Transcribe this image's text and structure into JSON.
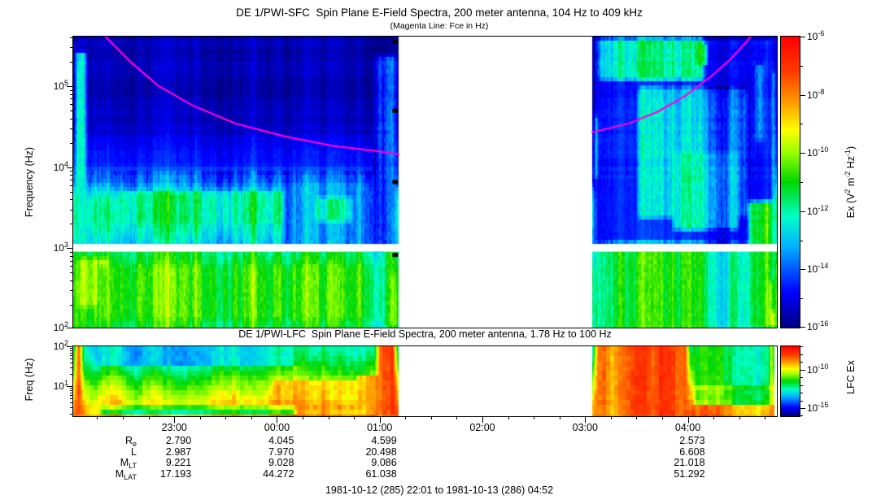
{
  "header": {
    "title": "DE 1/PWI-SFC  Spin Plane E-Field Spectra, 200 meter antenna, 104 Hz to 409 kHz",
    "subtitle": "(Magenta Line: Fce in Hz)"
  },
  "sfc_panel": {
    "ylabel": "Frequency (Hz)",
    "ex_label": {
      "pre": "Ex (V",
      "sup1": "2",
      "mid1": " m",
      "sup2": "-2",
      "mid2": " Hz",
      "sup3": "-1",
      "post": ")"
    }
  },
  "lfc_panel": {
    "title": "DE 1/PWI-LFC  Spin Plane E-Field Spectra, 200 meter antenna, 1.78 Hz to 100 Hz",
    "ylabel": "Freq (Hz)",
    "colorbar_label": "LFC Ex"
  },
  "xaxis": {
    "hour_labels": [
      "23:00",
      "00:00",
      "01:00",
      "02:00",
      "03:00",
      "04:00"
    ],
    "hour_fracs": [
      0.1436,
      0.2895,
      0.4355,
      0.5815,
      0.7275,
      0.8735
    ],
    "minor_tick_minutes": 15,
    "first_minor_offset_min": 14,
    "total_minutes": 411
  },
  "ephemeris": {
    "rows": [
      {
        "label": "R",
        "sub": "e",
        "values": [
          "2.790",
          "4.045",
          "4.599",
          "",
          "",
          "2.573"
        ]
      },
      {
        "label": "L",
        "sub": "",
        "values": [
          "2.987",
          "7.970",
          "20.498",
          "",
          "",
          "6.608"
        ]
      },
      {
        "label": "M",
        "sub": "LT",
        "values": [
          "9.221",
          "9.028",
          "9.086",
          "",
          "",
          "21.018"
        ]
      },
      {
        "label": "M",
        "sub": "LAT",
        "values": [
          "17.193",
          "44.272",
          "61.038",
          "",
          "",
          "51.292"
        ]
      }
    ]
  },
  "footer": "1981-10-12 (285) 22:01 to 1981-10-13 (286) 04:52",
  "chart_data": [
    {
      "type": "heatmap",
      "name": "sfc-spectrogram",
      "title": "DE 1/PWI-SFC Spin Plane E-Field Spectra, 200 meter antenna, 104 Hz to 409 kHz",
      "x_start": "1981-10-12 22:01",
      "x_end": "1981-10-13 04:52",
      "y_unit": "Hz",
      "y_log10_range": [
        2.017,
        5.612
      ],
      "y_tick_exps": [
        5,
        4,
        3,
        2
      ],
      "z_unit": "V^2 m^-2 Hz^-1",
      "z_log10_range": [
        -16,
        -6
      ],
      "colorbar_labeled_exps": [
        -6,
        -8,
        -10,
        -12,
        -14,
        -16
      ],
      "data_start_frac": 0.0,
      "data_end_frac": 1.0,
      "data_gap_frac": [
        0.46243,
        0.73757
      ],
      "data_gap_time": [
        "01:11",
        "03:04"
      ],
      "band_separator_log10f_range": [
        2.955,
        3.05
      ],
      "fce_color": "#ff00dd",
      "fce_line_left": [
        [
          0.035,
          5.75
        ],
        [
          0.046,
          5.61
        ],
        [
          0.08,
          5.31
        ],
        [
          0.12,
          5.01
        ],
        [
          0.17,
          4.76
        ],
        [
          0.23,
          4.54
        ],
        [
          0.3,
          4.38
        ],
        [
          0.37,
          4.26
        ],
        [
          0.43,
          4.2
        ],
        [
          0.4624,
          4.16
        ]
      ],
      "fce_line_right": [
        [
          0.7376,
          4.43
        ],
        [
          0.79,
          4.54
        ],
        [
          0.83,
          4.68
        ],
        [
          0.87,
          4.88
        ],
        [
          0.905,
          5.11
        ],
        [
          0.935,
          5.34
        ],
        [
          0.958,
          5.56
        ],
        [
          0.966,
          5.65
        ]
      ],
      "black_marks": [
        [
          0.4535,
          5.55
        ],
        [
          0.4535,
          4.7
        ],
        [
          0.4535,
          3.82
        ],
        [
          0.4535,
          2.92
        ]
      ],
      "base_profile": [
        [
          2.0,
          -11.0
        ],
        [
          2.35,
          -10.7
        ],
        [
          2.75,
          -10.8
        ],
        [
          2.95,
          -11.3
        ],
        [
          3.05,
          -12.6
        ],
        [
          3.35,
          -11.8
        ],
        [
          3.6,
          -12.0
        ],
        [
          3.85,
          -13.9
        ],
        [
          4.15,
          -14.7
        ],
        [
          4.5,
          -15.35
        ],
        [
          5.0,
          -15.45
        ],
        [
          5.612,
          -15.45
        ]
      ],
      "patches": [
        [
          0.0,
          0.022,
          3.0,
          5.45,
          -12.6
        ],
        [
          0.004,
          0.012,
          2.6,
          5.2,
          -11.8
        ],
        [
          0.004,
          0.055,
          2.25,
          2.9,
          -9.9
        ],
        [
          0.03,
          0.455,
          2.1,
          2.8,
          -10.55
        ],
        [
          0.06,
          0.44,
          3.28,
          3.72,
          -11.7
        ],
        [
          0.295,
          0.455,
          2.95,
          3.8,
          -13.3
        ],
        [
          0.34,
          0.4,
          3.3,
          3.65,
          -12.0
        ],
        [
          0.425,
          0.462,
          3.0,
          5.4,
          -13.0
        ],
        [
          0.437,
          0.462,
          2.0,
          3.0,
          -10.0
        ],
        [
          0.448,
          0.462,
          2.0,
          2.7,
          -9.2
        ],
        [
          0.738,
          1.0,
          3.05,
          5.612,
          -14.5
        ],
        [
          0.738,
          1.0,
          2.0,
          3.0,
          -11.2
        ],
        [
          0.742,
          0.9,
          5.05,
          5.612,
          -12.3
        ],
        [
          0.7376,
          0.749,
          3.85,
          4.65,
          -11.6
        ],
        [
          0.7376,
          0.749,
          2.55,
          3.0,
          -11.6
        ],
        [
          0.8,
          0.965,
          3.35,
          5.0,
          -13.1
        ],
        [
          0.85,
          0.95,
          3.2,
          4.2,
          -12.4
        ],
        [
          0.88,
          0.905,
          5.25,
          5.55,
          -11.3
        ],
        [
          0.965,
          0.985,
          4.3,
          5.3,
          -12.8
        ],
        [
          0.955,
          1.0,
          2.0,
          3.6,
          -10.5
        ],
        [
          0.985,
          1.0,
          2.0,
          2.6,
          -9.0
        ],
        [
          0.99,
          1.0,
          2.2,
          5.2,
          -12.3
        ]
      ],
      "noise": {
        "seed": 11,
        "col_amp": 2.0,
        "speckle": 0.55,
        "row_stripe": 0.32,
        "row_stripe_above": 3.85,
        "xq": 2,
        "yq": 5
      }
    },
    {
      "type": "heatmap",
      "name": "lfc-spectrogram",
      "title": "DE 1/PWI-LFC Spin Plane E-Field Spectra, 200 meter antenna, 1.78 Hz to 100 Hz",
      "x_start": "1981-10-12 22:01",
      "x_end": "1981-10-13 04:52",
      "y_unit": "Hz",
      "y_log10_range": [
        0.25,
        2.0
      ],
      "y_tick_exps": [
        2,
        1
      ],
      "z_unit": "V^2 m^-2 Hz^-1",
      "z_log10_range": [
        -16,
        -7
      ],
      "colorbar_labeled_exps": [
        -10,
        -15
      ],
      "data_start_frac": 0.0,
      "data_end_frac": 0.9965,
      "data_gap_frac": [
        0.46243,
        0.73757
      ],
      "data_gap_time": [
        "01:11",
        "03:04"
      ],
      "base_profile": [
        [
          0.25,
          -8.3
        ],
        [
          0.55,
          -8.9
        ],
        [
          0.85,
          -9.6
        ],
        [
          1.15,
          -10.3
        ],
        [
          1.5,
          -11.3
        ],
        [
          1.8,
          -11.9
        ],
        [
          2.0,
          -12.2
        ]
      ],
      "patches": [
        [
          0.0,
          0.016,
          0.25,
          2.0,
          -7.6
        ],
        [
          0.02,
          0.43,
          0.25,
          0.42,
          -9.0
        ],
        [
          0.035,
          0.32,
          0.25,
          0.5,
          -11.2
        ],
        [
          0.03,
          0.32,
          1.5,
          2.0,
          -12.4
        ],
        [
          0.28,
          0.462,
          0.62,
          1.2,
          -9.3
        ],
        [
          0.4,
          0.462,
          0.4,
          1.3,
          -8.9
        ],
        [
          0.428,
          0.462,
          0.25,
          2.0,
          -7.9
        ],
        [
          0.738,
          0.878,
          0.25,
          2.0,
          -8.3
        ],
        [
          0.878,
          1.0,
          1.0,
          2.0,
          -11.6
        ],
        [
          0.878,
          1.0,
          0.55,
          1.0,
          -11.0
        ],
        [
          0.878,
          1.0,
          0.25,
          0.55,
          -8.7
        ],
        [
          0.988,
          0.9965,
          0.25,
          2.0,
          -7.9
        ]
      ],
      "noise": {
        "seed": 29,
        "col_amp": 1.6,
        "speckle": 0.45,
        "row_stripe": 0,
        "row_stripe_above": 99,
        "xq": 5,
        "yq": 6
      }
    }
  ]
}
